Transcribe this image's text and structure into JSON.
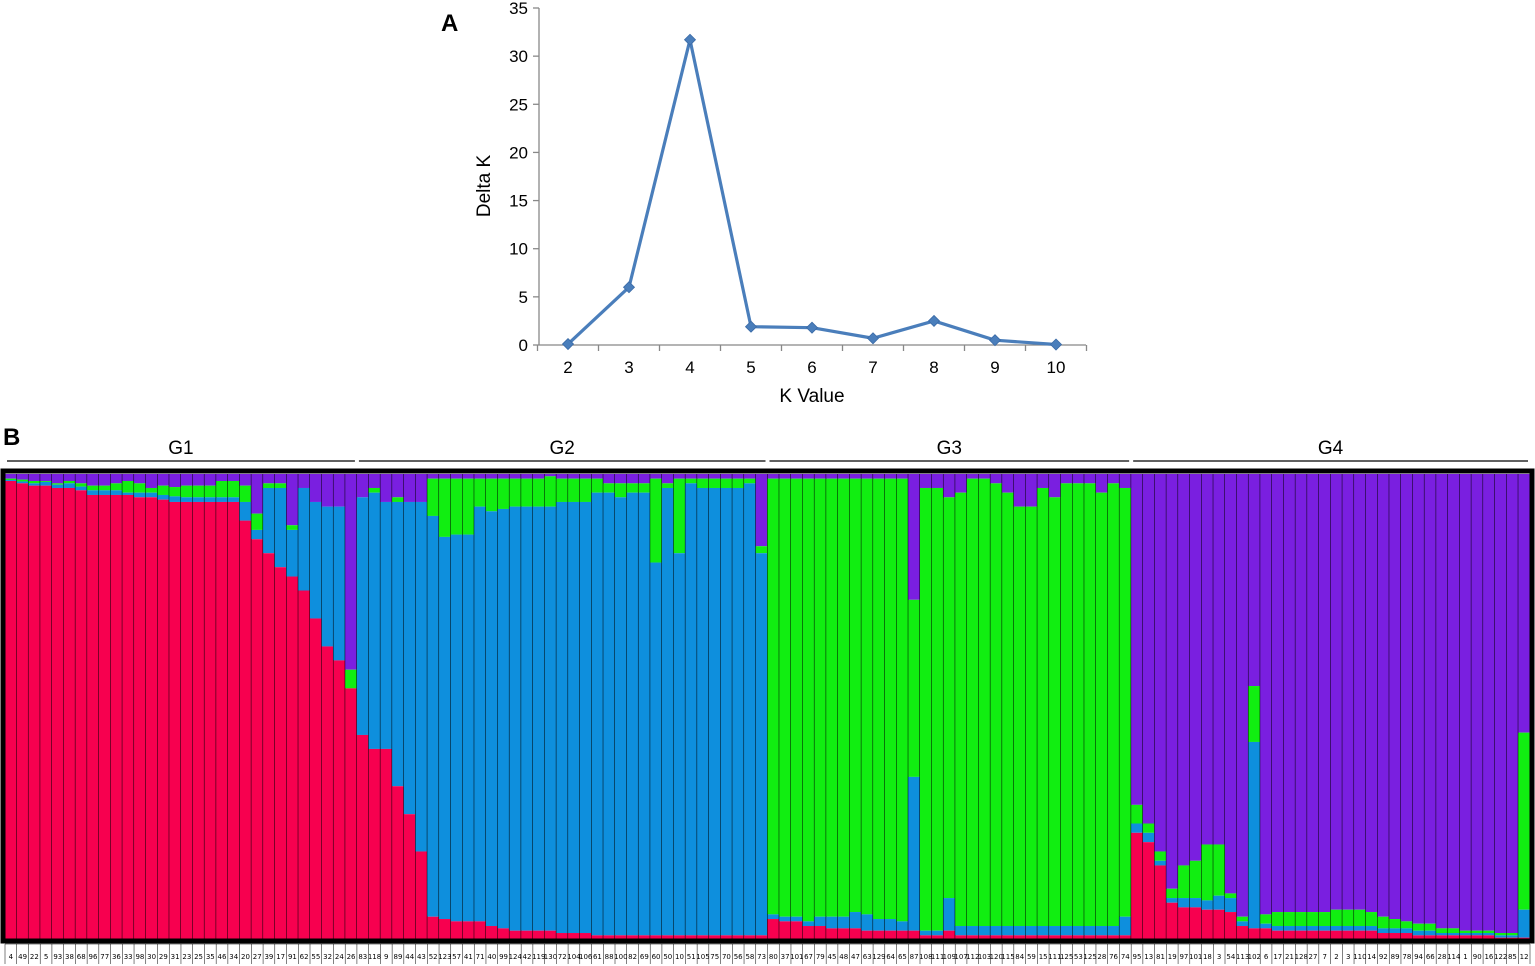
{
  "panel_a": {
    "label": "A"
  },
  "panel_b": {
    "label": "B"
  },
  "chart_data": [
    {
      "type": "line",
      "xlabel": "K Value",
      "ylabel": "Delta K",
      "x": [
        2,
        3,
        4,
        5,
        6,
        7,
        8,
        9,
        10
      ],
      "series": [
        {
          "values": [
            0.1,
            6.0,
            31.7,
            1.9,
            1.8,
            0.7,
            2.5,
            0.5,
            0.05
          ]
        }
      ],
      "xticks": [
        "2",
        "3",
        "4",
        "5",
        "6",
        "7",
        "8",
        "9",
        "10"
      ],
      "yticks": [
        "0",
        "5",
        "10",
        "15",
        "20",
        "25",
        "30",
        "35"
      ],
      "ylim": [
        0,
        35
      ],
      "grid": false,
      "line_color": "#4a7ebb"
    },
    {
      "type": "bar",
      "stacked": true,
      "colors": [
        "#f7004f",
        "#0e8fdd",
        "#11ee11",
        "#7a1fe0"
      ],
      "groups": [
        {
          "name": "G1",
          "samples": [
            "4",
            "49",
            "22",
            "5",
            "93",
            "38",
            "68",
            "96",
            "77",
            "36",
            "33",
            "98",
            "30",
            "29",
            "31",
            "23",
            "25",
            "35",
            "46",
            "34",
            "20",
            "27",
            "39",
            "17",
            "91",
            "62",
            "55",
            "32",
            "24",
            "26"
          ],
          "values": [
            [
              0.985,
              0.002,
              0.003,
              0.01
            ],
            [
              0.98,
              0.004,
              0.004,
              0.012
            ],
            [
              0.975,
              0.005,
              0.005,
              0.015
            ],
            [
              0.975,
              0.008,
              0.002,
              0.015
            ],
            [
              0.97,
              0.007,
              0.003,
              0.02
            ],
            [
              0.97,
              0.01,
              0.005,
              0.015
            ],
            [
              0.965,
              0.008,
              0.007,
              0.02
            ],
            [
              0.955,
              0.01,
              0.01,
              0.025
            ],
            [
              0.955,
              0.01,
              0.01,
              0.025
            ],
            [
              0.955,
              0.01,
              0.015,
              0.02
            ],
            [
              0.955,
              0.005,
              0.025,
              0.015
            ],
            [
              0.95,
              0.01,
              0.02,
              0.02
            ],
            [
              0.95,
              0.01,
              0.01,
              0.03
            ],
            [
              0.945,
              0.01,
              0.02,
              0.025
            ],
            [
              0.94,
              0.012,
              0.02,
              0.028
            ],
            [
              0.94,
              0.01,
              0.025,
              0.025
            ],
            [
              0.94,
              0.01,
              0.025,
              0.025
            ],
            [
              0.94,
              0.01,
              0.025,
              0.025
            ],
            [
              0.94,
              0.01,
              0.035,
              0.015
            ],
            [
              0.94,
              0.01,
              0.035,
              0.015
            ],
            [
              0.9,
              0.04,
              0.035,
              0.025
            ],
            [
              0.86,
              0.02,
              0.035,
              0.085
            ],
            [
              0.83,
              0.14,
              0.01,
              0.02
            ],
            [
              0.8,
              0.17,
              0.01,
              0.02
            ],
            [
              0.78,
              0.1,
              0.01,
              0.11
            ],
            [
              0.75,
              0.22,
              0.0,
              0.03
            ],
            [
              0.69,
              0.25,
              0.0,
              0.06
            ],
            [
              0.63,
              0.3,
              0.0,
              0.07
            ],
            [
              0.6,
              0.33,
              0.0,
              0.07
            ],
            [
              0.54,
              0.0,
              0.04,
              0.42
            ]
          ]
        },
        {
          "name": "G2",
          "samples": [
            "83",
            "118",
            "9",
            "89",
            "44",
            "43",
            "52",
            "123",
            "57",
            "41",
            "71",
            "40",
            "99",
            "124",
            "42",
            "119",
            "130",
            "72",
            "104",
            "106",
            "61",
            "88",
            "100",
            "82",
            "69",
            "60",
            "50",
            "10",
            "51",
            "105",
            "75",
            "70",
            "56",
            "58",
            "73"
          ],
          "values": [
            [
              0.44,
              0.51,
              0.0,
              0.05
            ],
            [
              0.41,
              0.55,
              0.01,
              0.03
            ],
            [
              0.41,
              0.53,
              0.0,
              0.06
            ],
            [
              0.33,
              0.61,
              0.01,
              0.05
            ],
            [
              0.27,
              0.67,
              0.0,
              0.06
            ],
            [
              0.19,
              0.75,
              0.0,
              0.06
            ],
            [
              0.05,
              0.86,
              0.08,
              0.01
            ],
            [
              0.045,
              0.82,
              0.125,
              0.01
            ],
            [
              0.04,
              0.83,
              0.12,
              0.01
            ],
            [
              0.04,
              0.83,
              0.12,
              0.01
            ],
            [
              0.04,
              0.89,
              0.06,
              0.01
            ],
            [
              0.03,
              0.89,
              0.07,
              0.01
            ],
            [
              0.025,
              0.9,
              0.065,
              0.01
            ],
            [
              0.02,
              0.91,
              0.06,
              0.01
            ],
            [
              0.02,
              0.91,
              0.06,
              0.01
            ],
            [
              0.02,
              0.91,
              0.06,
              0.01
            ],
            [
              0.02,
              0.91,
              0.065,
              0.005
            ],
            [
              0.015,
              0.925,
              0.05,
              0.01
            ],
            [
              0.015,
              0.925,
              0.05,
              0.01
            ],
            [
              0.015,
              0.925,
              0.05,
              0.01
            ],
            [
              0.01,
              0.95,
              0.03,
              0.01
            ],
            [
              0.01,
              0.95,
              0.02,
              0.02
            ],
            [
              0.01,
              0.94,
              0.03,
              0.02
            ],
            [
              0.01,
              0.95,
              0.02,
              0.02
            ],
            [
              0.01,
              0.95,
              0.02,
              0.02
            ],
            [
              0.01,
              0.8,
              0.18,
              0.01
            ],
            [
              0.01,
              0.96,
              0.01,
              0.02
            ],
            [
              0.01,
              0.82,
              0.16,
              0.01
            ],
            [
              0.01,
              0.97,
              0.01,
              0.01
            ],
            [
              0.01,
              0.96,
              0.02,
              0.01
            ],
            [
              0.01,
              0.96,
              0.02,
              0.01
            ],
            [
              0.01,
              0.96,
              0.02,
              0.01
            ],
            [
              0.01,
              0.96,
              0.02,
              0.01
            ],
            [
              0.01,
              0.97,
              0.01,
              0.01
            ],
            [
              0.01,
              0.82,
              0.015,
              0.155
            ]
          ]
        },
        {
          "name": "G3",
          "samples": [
            "80",
            "37",
            "101",
            "67",
            "79",
            "45",
            "48",
            "47",
            "63",
            "129",
            "64",
            "65",
            "87",
            "108",
            "111",
            "109",
            "107",
            "112",
            "103",
            "120",
            "115",
            "84",
            "59",
            "15",
            "111",
            "125",
            "53",
            "125",
            "28",
            "76",
            "74"
          ],
          "values": [
            [
              0.045,
              0.01,
              0.935,
              0.01
            ],
            [
              0.04,
              0.01,
              0.94,
              0.01
            ],
            [
              0.04,
              0.01,
              0.94,
              0.01
            ],
            [
              0.03,
              0.01,
              0.95,
              0.01
            ],
            [
              0.03,
              0.02,
              0.94,
              0.01
            ],
            [
              0.025,
              0.025,
              0.94,
              0.01
            ],
            [
              0.025,
              0.025,
              0.94,
              0.01
            ],
            [
              0.025,
              0.035,
              0.93,
              0.01
            ],
            [
              0.02,
              0.035,
              0.935,
              0.01
            ],
            [
              0.02,
              0.025,
              0.945,
              0.01
            ],
            [
              0.02,
              0.025,
              0.945,
              0.01
            ],
            [
              0.02,
              0.02,
              0.95,
              0.01
            ],
            [
              0.02,
              0.33,
              0.38,
              0.27
            ],
            [
              0.01,
              0.01,
              0.95,
              0.03
            ],
            [
              0.01,
              0.01,
              0.95,
              0.03
            ],
            [
              0.02,
              0.07,
              0.86,
              0.05
            ],
            [
              0.01,
              0.02,
              0.93,
              0.04
            ],
            [
              0.01,
              0.02,
              0.96,
              0.01
            ],
            [
              0.01,
              0.02,
              0.96,
              0.01
            ],
            [
              0.01,
              0.02,
              0.95,
              0.02
            ],
            [
              0.01,
              0.02,
              0.93,
              0.04
            ],
            [
              0.01,
              0.02,
              0.9,
              0.07
            ],
            [
              0.01,
              0.02,
              0.9,
              0.07
            ],
            [
              0.01,
              0.02,
              0.94,
              0.03
            ],
            [
              0.01,
              0.02,
              0.92,
              0.05
            ],
            [
              0.01,
              0.02,
              0.95,
              0.02
            ],
            [
              0.01,
              0.02,
              0.95,
              0.02
            ],
            [
              0.01,
              0.02,
              0.95,
              0.02
            ],
            [
              0.01,
              0.02,
              0.93,
              0.04
            ],
            [
              0.01,
              0.02,
              0.95,
              0.02
            ],
            [
              0.01,
              0.04,
              0.92,
              0.03
            ]
          ]
        },
        {
          "name": "G4",
          "samples": [
            "95",
            "13",
            "81",
            "19",
            "97",
            "101",
            "18",
            "3",
            "54",
            "113",
            "102",
            "6",
            "17",
            "21",
            "128",
            "27",
            "7",
            "2",
            "3",
            "110",
            "14",
            "92",
            "89",
            "78",
            "94",
            "66",
            "28",
            "114",
            "1",
            "90",
            "16",
            "122",
            "85",
            "12"
          ],
          "values": [
            [
              0.23,
              0.02,
              0.04,
              0.71
            ],
            [
              0.21,
              0.02,
              0.02,
              0.75
            ],
            [
              0.16,
              0.01,
              0.02,
              0.81
            ],
            [
              0.08,
              0.01,
              0.02,
              0.89
            ],
            [
              0.07,
              0.02,
              0.07,
              0.84
            ],
            [
              0.07,
              0.02,
              0.08,
              0.83
            ],
            [
              0.065,
              0.02,
              0.12,
              0.795
            ],
            [
              0.065,
              0.03,
              0.11,
              0.795
            ],
            [
              0.06,
              0.03,
              0.01,
              0.9
            ],
            [
              0.03,
              0.01,
              0.01,
              0.95
            ],
            [
              0.025,
              0.4,
              0.12,
              0.455
            ],
            [
              0.025,
              0.01,
              0.02,
              0.945
            ],
            [
              0.02,
              0.01,
              0.03,
              0.94
            ],
            [
              0.02,
              0.01,
              0.03,
              0.94
            ],
            [
              0.02,
              0.01,
              0.03,
              0.94
            ],
            [
              0.02,
              0.01,
              0.03,
              0.94
            ],
            [
              0.02,
              0.01,
              0.03,
              0.94
            ],
            [
              0.02,
              0.01,
              0.035,
              0.935
            ],
            [
              0.02,
              0.01,
              0.035,
              0.935
            ],
            [
              0.02,
              0.01,
              0.035,
              0.935
            ],
            [
              0.02,
              0.01,
              0.03,
              0.94
            ],
            [
              0.015,
              0.01,
              0.025,
              0.95
            ],
            [
              0.015,
              0.01,
              0.02,
              0.955
            ],
            [
              0.015,
              0.01,
              0.015,
              0.96
            ],
            [
              0.01,
              0.01,
              0.015,
              0.965
            ],
            [
              0.01,
              0.01,
              0.015,
              0.965
            ],
            [
              0.01,
              0.005,
              0.01,
              0.975
            ],
            [
              0.01,
              0.005,
              0.01,
              0.975
            ],
            [
              0.01,
              0.005,
              0.005,
              0.98
            ],
            [
              0.01,
              0.005,
              0.005,
              0.98
            ],
            [
              0.01,
              0.005,
              0.005,
              0.98
            ],
            [
              0.005,
              0.005,
              0.005,
              0.985
            ],
            [
              0.005,
              0.005,
              0.005,
              0.985
            ],
            [
              0.005,
              0.06,
              0.38,
              0.555
            ]
          ]
        }
      ]
    }
  ]
}
